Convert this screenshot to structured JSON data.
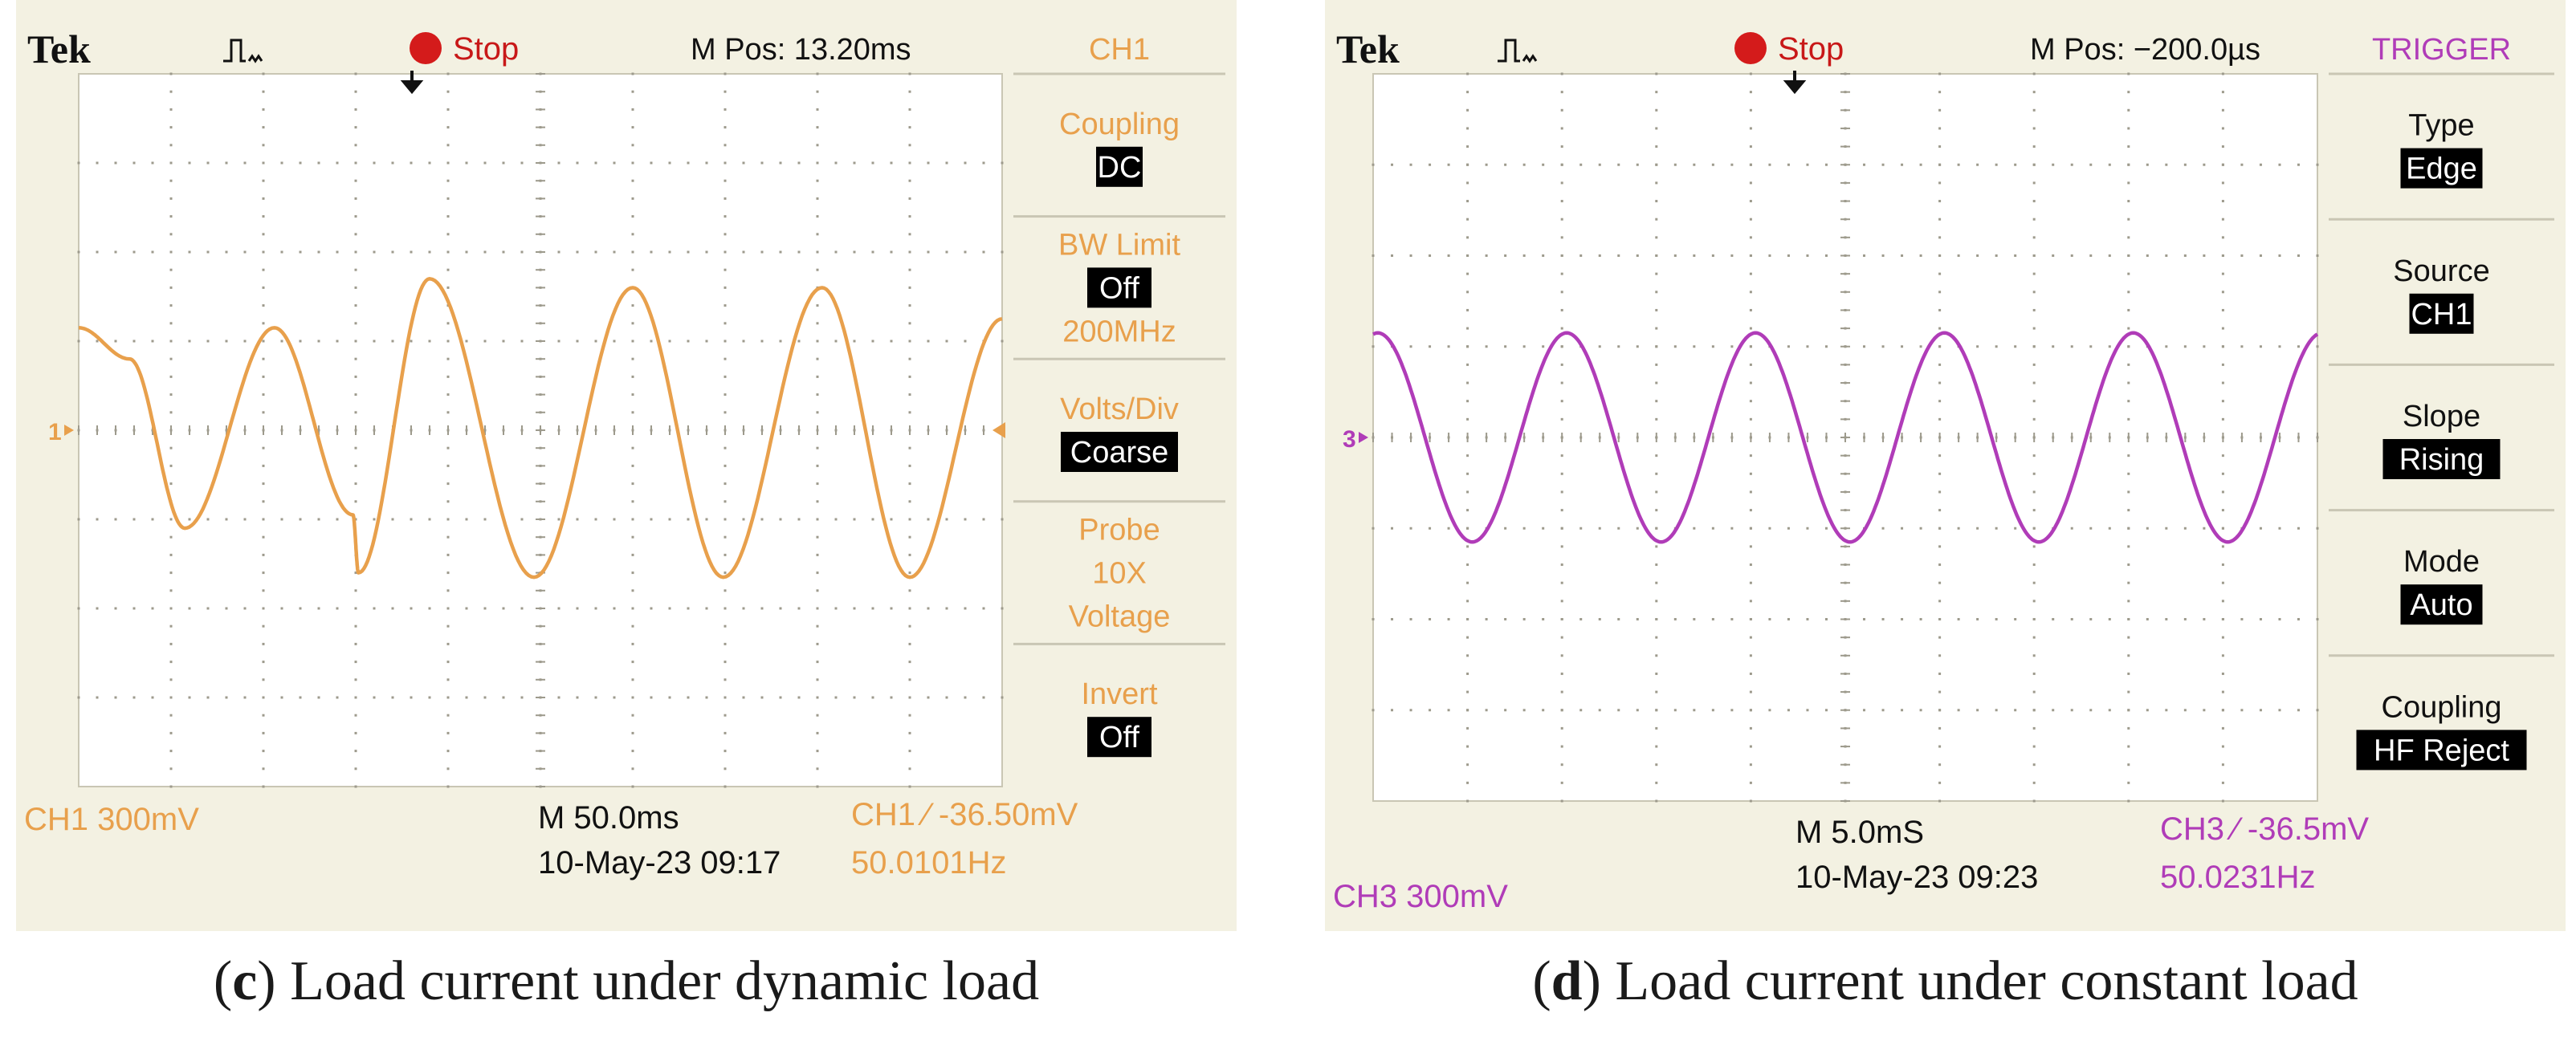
{
  "panels": [
    {
      "id": "c",
      "caption_letter": "c",
      "caption_text": "Load current under dynamic load",
      "accent": "#e8a04c",
      "header": {
        "brand": "Tek",
        "status": "Stop",
        "mpos": "M Pos: 13.20ms"
      },
      "menu": {
        "title": "CH1",
        "items": [
          {
            "label": [
              "Coupling"
            ],
            "value": "DC"
          },
          {
            "label": [
              "BW Limit"
            ],
            "value": "Off",
            "extra": "200MHz"
          },
          {
            "label": [
              "Volts/Div"
            ],
            "value": "Coarse"
          },
          {
            "label": [
              "Probe",
              "10X",
              "Voltage"
            ],
            "value": ""
          },
          {
            "label": [
              "Invert"
            ],
            "value": "Off"
          }
        ]
      },
      "footer": {
        "ch_scale": "CH1 300mV",
        "timebase": "M 50.0ms",
        "datetime": "10-May-23  09:17",
        "trigger": "CH1 ∕ -36.50mV",
        "freq": "50.0101Hz"
      },
      "marker_label": "1",
      "chart_data": {
        "type": "line",
        "x_unit": "div",
        "y_unit": "div",
        "xlim": [
          0,
          10
        ],
        "ylim": [
          -4,
          4
        ],
        "series": [
          {
            "values_x": [
              0,
              0.55,
              1.15,
              2.12,
              2.97,
              3.03,
              3.8,
              4.93,
              6.0,
              6.98,
              8.05,
              9.0,
              10.0
            ],
            "values_y": [
              1.15,
              0.8,
              -1.1,
              1.15,
              -0.95,
              -1.6,
              1.7,
              -1.65,
              1.6,
              -1.65,
              1.6,
              -1.65,
              1.25
            ]
          }
        ]
      }
    },
    {
      "id": "d",
      "caption_letter": "d",
      "caption_text": "Load current under constant load",
      "accent": "#b03cb8",
      "header": {
        "brand": "Tek",
        "status": "Stop",
        "mpos": "M Pos: −200.0µs"
      },
      "menu": {
        "title": "TRIGGER",
        "items": [
          {
            "label": [
              "Type"
            ],
            "value": "Edge"
          },
          {
            "label": [
              "Source"
            ],
            "value": "CH1"
          },
          {
            "label": [
              "Slope"
            ],
            "value": "Rising"
          },
          {
            "label": [
              "Mode"
            ],
            "value": "Auto"
          },
          {
            "label": [
              "Coupling"
            ],
            "value": "HF Reject"
          }
        ]
      },
      "footer": {
        "ch_scale": "CH3 300mV",
        "timebase": "M 5.0mS",
        "datetime": "10-May-23  09:23",
        "trigger": "CH3 ∕ -36.5mV",
        "freq": "50.0231Hz"
      },
      "marker_label": "3",
      "chart_data": {
        "type": "line",
        "x_unit": "div",
        "y_unit": "div",
        "xlim": [
          0,
          10
        ],
        "ylim": [
          -4,
          4
        ],
        "series": [
          {
            "sine": {
              "amplitude": 1.15,
              "offset": 0.0,
              "period": 2.0,
              "peak_x": 0.05,
              "x_end": 10.0
            }
          }
        ]
      }
    }
  ]
}
